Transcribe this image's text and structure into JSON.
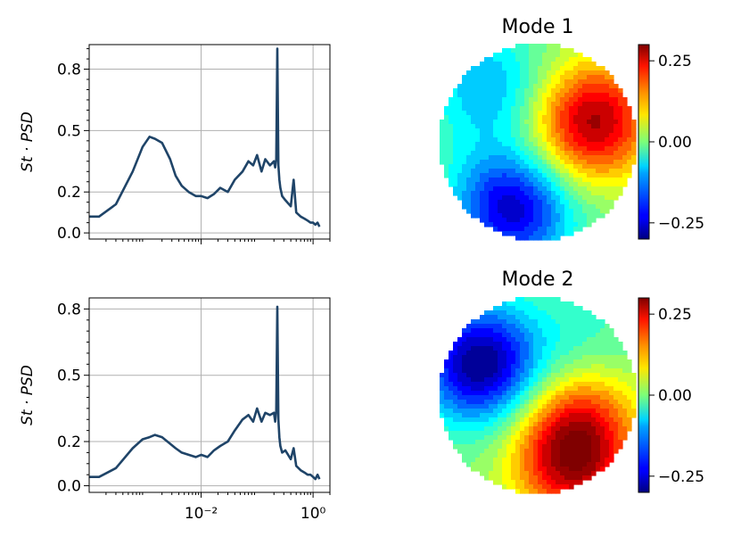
{
  "chart_data": [
    {
      "type": "line",
      "panel": "top-left",
      "ylabel": "St · PSD",
      "xscale": "log",
      "xlim": [
        0.0001,
        2
      ],
      "ylim": [
        -0.03,
        0.92
      ],
      "y_ticks": [
        0.0,
        0.2,
        0.5,
        0.8
      ],
      "y_tick_labels": [
        "0.0",
        "0.2",
        "0.5",
        "0.8"
      ],
      "x_ticks": [
        0.01,
        1
      ],
      "x_tick_labels": [
        "",
        ""
      ],
      "grid": true,
      "color": "#1f4468",
      "series": [
        {
          "x": [
            0.0001,
            0.00015,
            0.0003,
            0.0006,
            0.0009,
            0.0012,
            0.0015,
            0.002,
            0.0028,
            0.0035,
            0.0045,
            0.006,
            0.008,
            0.01,
            0.013,
            0.017,
            0.022,
            0.03,
            0.04,
            0.055,
            0.07,
            0.085,
            0.1,
            0.12,
            0.14,
            0.17,
            0.2,
            0.21,
            0.22,
            0.23,
            0.24,
            0.25,
            0.26,
            0.28,
            0.32,
            0.4,
            0.45,
            0.5,
            0.6,
            0.7,
            0.8,
            0.9,
            1.0,
            1.1,
            1.2,
            1.3
          ],
          "y": [
            0.08,
            0.08,
            0.14,
            0.3,
            0.42,
            0.47,
            0.46,
            0.44,
            0.36,
            0.28,
            0.23,
            0.2,
            0.18,
            0.18,
            0.17,
            0.19,
            0.22,
            0.2,
            0.26,
            0.3,
            0.35,
            0.33,
            0.38,
            0.3,
            0.36,
            0.33,
            0.35,
            0.32,
            0.36,
            0.9,
            0.33,
            0.26,
            0.22,
            0.18,
            0.16,
            0.13,
            0.26,
            0.1,
            0.08,
            0.07,
            0.06,
            0.05,
            0.05,
            0.04,
            0.05,
            0.03
          ]
        }
      ]
    },
    {
      "type": "line",
      "panel": "bottom-left",
      "ylabel": "St · PSD",
      "xscale": "log",
      "xlim": [
        0.0001,
        2
      ],
      "ylim": [
        -0.03,
        0.85
      ],
      "y_ticks": [
        0.0,
        0.2,
        0.5,
        0.8
      ],
      "y_tick_labels": [
        "0.0",
        "0.2",
        "0.5",
        "0.8"
      ],
      "x_ticks": [
        0.01,
        1
      ],
      "x_tick_labels": [
        "10⁻²",
        "10⁰"
      ],
      "grid": true,
      "color": "#1f4468",
      "series": [
        {
          "x": [
            0.0001,
            0.00015,
            0.0003,
            0.0006,
            0.0009,
            0.0012,
            0.0015,
            0.002,
            0.0028,
            0.0035,
            0.0045,
            0.006,
            0.008,
            0.01,
            0.013,
            0.017,
            0.022,
            0.03,
            0.04,
            0.055,
            0.07,
            0.085,
            0.1,
            0.12,
            0.14,
            0.17,
            0.2,
            0.21,
            0.22,
            0.23,
            0.24,
            0.25,
            0.26,
            0.28,
            0.32,
            0.4,
            0.45,
            0.5,
            0.6,
            0.7,
            0.8,
            0.9,
            1.0,
            1.1,
            1.2,
            1.3
          ],
          "y": [
            0.04,
            0.04,
            0.08,
            0.17,
            0.21,
            0.22,
            0.23,
            0.22,
            0.19,
            0.17,
            0.15,
            0.14,
            0.13,
            0.14,
            0.13,
            0.16,
            0.18,
            0.2,
            0.25,
            0.3,
            0.32,
            0.29,
            0.35,
            0.29,
            0.33,
            0.32,
            0.33,
            0.29,
            0.34,
            0.81,
            0.3,
            0.22,
            0.18,
            0.15,
            0.16,
            0.12,
            0.17,
            0.09,
            0.07,
            0.06,
            0.05,
            0.05,
            0.04,
            0.03,
            0.05,
            0.03
          ]
        }
      ]
    },
    {
      "type": "heatmap",
      "panel": "top-right",
      "title": "Mode 1",
      "shape": "circle",
      "colormap": "jet",
      "clim": [
        -0.3,
        0.3
      ],
      "colorbar_ticks": [
        0.25,
        0.0,
        -0.25
      ],
      "colorbar_tick_labels": [
        "0.25",
        "0.00",
        "−0.25"
      ],
      "blobs": [
        {
          "cx": 0.58,
          "cy": -0.22,
          "amp": 0.27
        },
        {
          "cx": -0.48,
          "cy": -0.55,
          "amp": -0.12
        },
        {
          "cx": -0.24,
          "cy": 0.65,
          "amp": -0.27
        },
        {
          "cx": 0.1,
          "cy": 0.2,
          "amp": 0.04
        }
      ]
    },
    {
      "type": "heatmap",
      "panel": "bottom-right",
      "title": "Mode 2",
      "shape": "circle",
      "colormap": "jet",
      "clim": [
        -0.3,
        0.3
      ],
      "colorbar_ticks": [
        0.25,
        0.0,
        -0.25
      ],
      "colorbar_tick_labels": [
        "0.25",
        "0.00",
        "−0.25"
      ],
      "blobs": [
        {
          "cx": -0.58,
          "cy": -0.32,
          "amp": -0.3
        },
        {
          "cx": 0.35,
          "cy": 0.68,
          "amp": 0.26
        },
        {
          "cx": 0.45,
          "cy": 0.15,
          "amp": 0.14
        },
        {
          "cx": 0.45,
          "cy": -0.45,
          "amp": -0.06
        }
      ]
    }
  ]
}
